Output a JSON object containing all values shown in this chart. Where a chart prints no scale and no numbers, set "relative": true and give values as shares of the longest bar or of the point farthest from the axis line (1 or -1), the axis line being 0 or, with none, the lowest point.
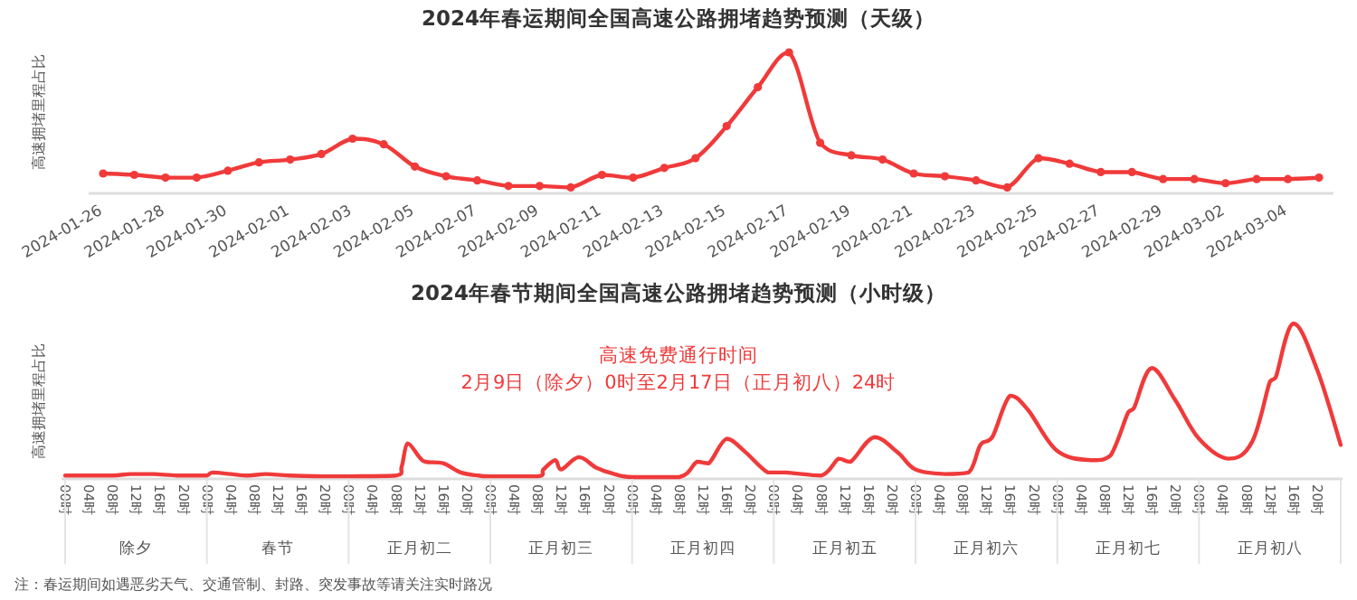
{
  "chart_data": [
    {
      "type": "line",
      "title": "2024年春运期间全国高速公路拥堵趋势预测（天级）",
      "ylabel": "高速拥堵里程占比",
      "relative": true,
      "marker": "circle",
      "categories": [
        "2024-01-26",
        null,
        "2024-01-28",
        null,
        "2024-01-30",
        null,
        "2024-02-01",
        null,
        "2024-02-03",
        null,
        "2024-02-05",
        null,
        "2024-02-07",
        null,
        "2024-02-09",
        null,
        "2024-02-11",
        null,
        "2024-02-13",
        null,
        "2024-02-15",
        null,
        "2024-02-17",
        null,
        "2024-02-19",
        null,
        "2024-02-21",
        null,
        "2024-02-23",
        null,
        "2024-02-25",
        null,
        "2024-02-27",
        null,
        "2024-02-29",
        null,
        "2024-03-02",
        null,
        "2024-03-04",
        null
      ],
      "series": [
        {
          "color": "#f03a3a",
          "values": [
            0.13,
            0.12,
            0.1,
            0.1,
            0.15,
            0.21,
            0.23,
            0.27,
            0.38,
            0.34,
            0.18,
            0.11,
            0.08,
            0.04,
            0.04,
            0.03,
            0.12,
            0.1,
            0.17,
            0.24,
            0.47,
            0.75,
            1.0,
            0.35,
            0.26,
            0.23,
            0.13,
            0.11,
            0.08,
            0.03,
            0.24,
            0.2,
            0.14,
            0.14,
            0.09,
            0.09,
            0.06,
            0.09,
            0.09,
            0.1
          ]
        }
      ]
    },
    {
      "type": "line",
      "title": "2024年春节期间全国高速公路拥堵趋势预测（小时级）",
      "ylabel": "高速拥堵里程占比",
      "relative": true,
      "marker": "none",
      "xlim": [
        "2024-02-09T00:00",
        "2024-02-18T00:00"
      ],
      "xticks": [
        {
          "value": "2024-02-09T00:00",
          "label": "00时"
        },
        {
          "value": "2024-02-09T04:00",
          "label": "04时"
        },
        {
          "value": "2024-02-09T08:00",
          "label": "08时"
        },
        {
          "value": "2024-02-09T12:00",
          "label": "12时"
        },
        {
          "value": "2024-02-09T16:00",
          "label": "16时"
        },
        {
          "value": "2024-02-09T20:00",
          "label": "20时"
        },
        {
          "value": "2024-02-10T00:00",
          "label": "00时"
        },
        {
          "value": "2024-02-10T04:00",
          "label": "04时"
        },
        {
          "value": "2024-02-10T08:00",
          "label": "08时"
        },
        {
          "value": "2024-02-10T12:00",
          "label": "12时"
        },
        {
          "value": "2024-02-10T16:00",
          "label": "16时"
        },
        {
          "value": "2024-02-10T20:00",
          "label": "20时"
        },
        {
          "value": "2024-02-11T00:00",
          "label": "00时"
        },
        {
          "value": "2024-02-11T04:00",
          "label": "04时"
        },
        {
          "value": "2024-02-11T08:00",
          "label": "08时"
        },
        {
          "value": "2024-02-11T12:00",
          "label": "12时"
        },
        {
          "value": "2024-02-11T16:00",
          "label": "16时"
        },
        {
          "value": "2024-02-11T20:00",
          "label": "20时"
        },
        {
          "value": "2024-02-12T00:00",
          "label": "00时"
        },
        {
          "value": "2024-02-12T04:00",
          "label": "04时"
        },
        {
          "value": "2024-02-12T08:00",
          "label": "08时"
        },
        {
          "value": "2024-02-12T12:00",
          "label": "12时"
        },
        {
          "value": "2024-02-12T16:00",
          "label": "16时"
        },
        {
          "value": "2024-02-12T20:00",
          "label": "20时"
        },
        {
          "value": "2024-02-13T00:00",
          "label": "00时"
        },
        {
          "value": "2024-02-13T04:00",
          "label": "04时"
        },
        {
          "value": "2024-02-13T08:00",
          "label": "08时"
        },
        {
          "value": "2024-02-13T12:00",
          "label": "12时"
        },
        {
          "value": "2024-02-13T16:00",
          "label": "16时"
        },
        {
          "value": "2024-02-13T20:00",
          "label": "20时"
        },
        {
          "value": "2024-02-14T00:00",
          "label": "00时"
        },
        {
          "value": "2024-02-14T04:00",
          "label": "04时"
        },
        {
          "value": "2024-02-14T08:00",
          "label": "08时"
        },
        {
          "value": "2024-02-14T12:00",
          "label": "12时"
        },
        {
          "value": "2024-02-14T16:00",
          "label": "16时"
        },
        {
          "value": "2024-02-14T20:00",
          "label": "20时"
        },
        {
          "value": "2024-02-15T00:00",
          "label": "00时"
        },
        {
          "value": "2024-02-15T04:00",
          "label": "04时"
        },
        {
          "value": "2024-02-15T08:00",
          "label": "08时"
        },
        {
          "value": "2024-02-15T12:00",
          "label": "12时"
        },
        {
          "value": "2024-02-15T16:00",
          "label": "16时"
        },
        {
          "value": "2024-02-15T20:00",
          "label": "20时"
        },
        {
          "value": "2024-02-16T00:00",
          "label": "00时"
        },
        {
          "value": "2024-02-16T04:00",
          "label": "04时"
        },
        {
          "value": "2024-02-16T08:00",
          "label": "08时"
        },
        {
          "value": "2024-02-16T12:00",
          "label": "12时"
        },
        {
          "value": "2024-02-16T16:00",
          "label": "16时"
        },
        {
          "value": "2024-02-16T20:00",
          "label": "20时"
        },
        {
          "value": "2024-02-17T00:00",
          "label": "00时"
        },
        {
          "value": "2024-02-17T04:00",
          "label": "04时"
        },
        {
          "value": "2024-02-17T08:00",
          "label": "08时"
        },
        {
          "value": "2024-02-17T12:00",
          "label": "12时"
        },
        {
          "value": "2024-02-17T16:00",
          "label": "16时"
        },
        {
          "value": "2024-02-17T20:00",
          "label": "20时"
        }
      ],
      "annotations": [
        "高速免费通行时间",
        "2月9日（除夕）0时至2月17日（正月初八）24时",
        "除夕",
        "春节",
        "正月初二",
        "正月初三",
        "正月初四",
        "正月初五",
        "正月初六",
        "正月初七",
        "正月初八",
        "注：春运期间如遇恶劣天气、交通管制、封路、突发事故等请关注实时路况"
      ],
      "series": [
        {
          "color": "#f03a3a",
          "x": [
            "2024-02-09T00:00",
            "2024-02-09T04:00",
            "2024-02-09T08:00",
            "2024-02-09T11:00",
            "2024-02-09T13:00",
            "2024-02-09T15:00",
            "2024-02-09T19:00",
            "2024-02-09T22:00",
            "2024-02-10T00:00",
            "2024-02-10T01:00",
            "2024-02-10T04:00",
            "2024-02-10T07:00",
            "2024-02-10T10:00",
            "2024-02-10T14:00",
            "2024-02-10T20:00",
            "2024-02-11T00:00",
            "2024-02-11T08:00",
            "2024-02-11T09:00",
            "2024-02-11T10:00",
            "2024-02-11T12:00",
            "2024-02-11T13:00",
            "2024-02-11T16:00",
            "2024-02-11T19:00",
            "2024-02-11T22:00",
            "2024-02-12T00:00",
            "2024-02-12T08:00",
            "2024-02-12T09:00",
            "2024-02-12T11:00",
            "2024-02-12T12:00",
            "2024-02-12T15:00",
            "2024-02-12T18:00",
            "2024-02-12T21:00",
            "2024-02-13T00:00",
            "2024-02-13T08:00",
            "2024-02-13T11:00",
            "2024-02-13T13:00",
            "2024-02-13T16:00",
            "2024-02-13T19:00",
            "2024-02-13T23:00",
            "2024-02-14T02:00",
            "2024-02-14T08:00",
            "2024-02-14T11:00",
            "2024-02-14T13:00",
            "2024-02-14T17:00",
            "2024-02-14T21:00",
            "2024-02-15T00:00",
            "2024-02-15T05:00",
            "2024-02-15T09:00",
            "2024-02-15T11:00",
            "2024-02-15T13:00",
            "2024-02-15T16:00",
            "2024-02-15T19:00",
            "2024-02-16T00:00",
            "2024-02-16T06:00",
            "2024-02-16T09:00",
            "2024-02-16T12:00",
            "2024-02-16T13:00",
            "2024-02-16T16:00",
            "2024-02-16T20:00",
            "2024-02-17T00:00",
            "2024-02-17T05:00",
            "2024-02-17T09:00",
            "2024-02-17T12:00",
            "2024-02-17T13:00",
            "2024-02-17T16:00",
            "2024-02-17T20:00",
            "2024-02-18T00:00"
          ],
          "values": [
            0.01,
            0.01,
            0.01,
            0.02,
            0.02,
            0.02,
            0.01,
            0.01,
            0.01,
            0.03,
            0.02,
            0.01,
            0.02,
            0.01,
            0.005,
            0.005,
            0.01,
            0.07,
            0.22,
            0.13,
            0.1,
            0.09,
            0.03,
            0.01,
            0.005,
            0.005,
            0.05,
            0.11,
            0.05,
            0.13,
            0.06,
            0.02,
            0.0,
            0.0,
            0.1,
            0.09,
            0.25,
            0.17,
            0.03,
            0.03,
            0.01,
            0.12,
            0.1,
            0.26,
            0.16,
            0.05,
            0.02,
            0.03,
            0.21,
            0.26,
            0.53,
            0.44,
            0.17,
            0.11,
            0.14,
            0.42,
            0.45,
            0.71,
            0.5,
            0.25,
            0.12,
            0.23,
            0.62,
            0.65,
            1.0,
            0.7,
            0.21
          ]
        }
      ]
    }
  ]
}
